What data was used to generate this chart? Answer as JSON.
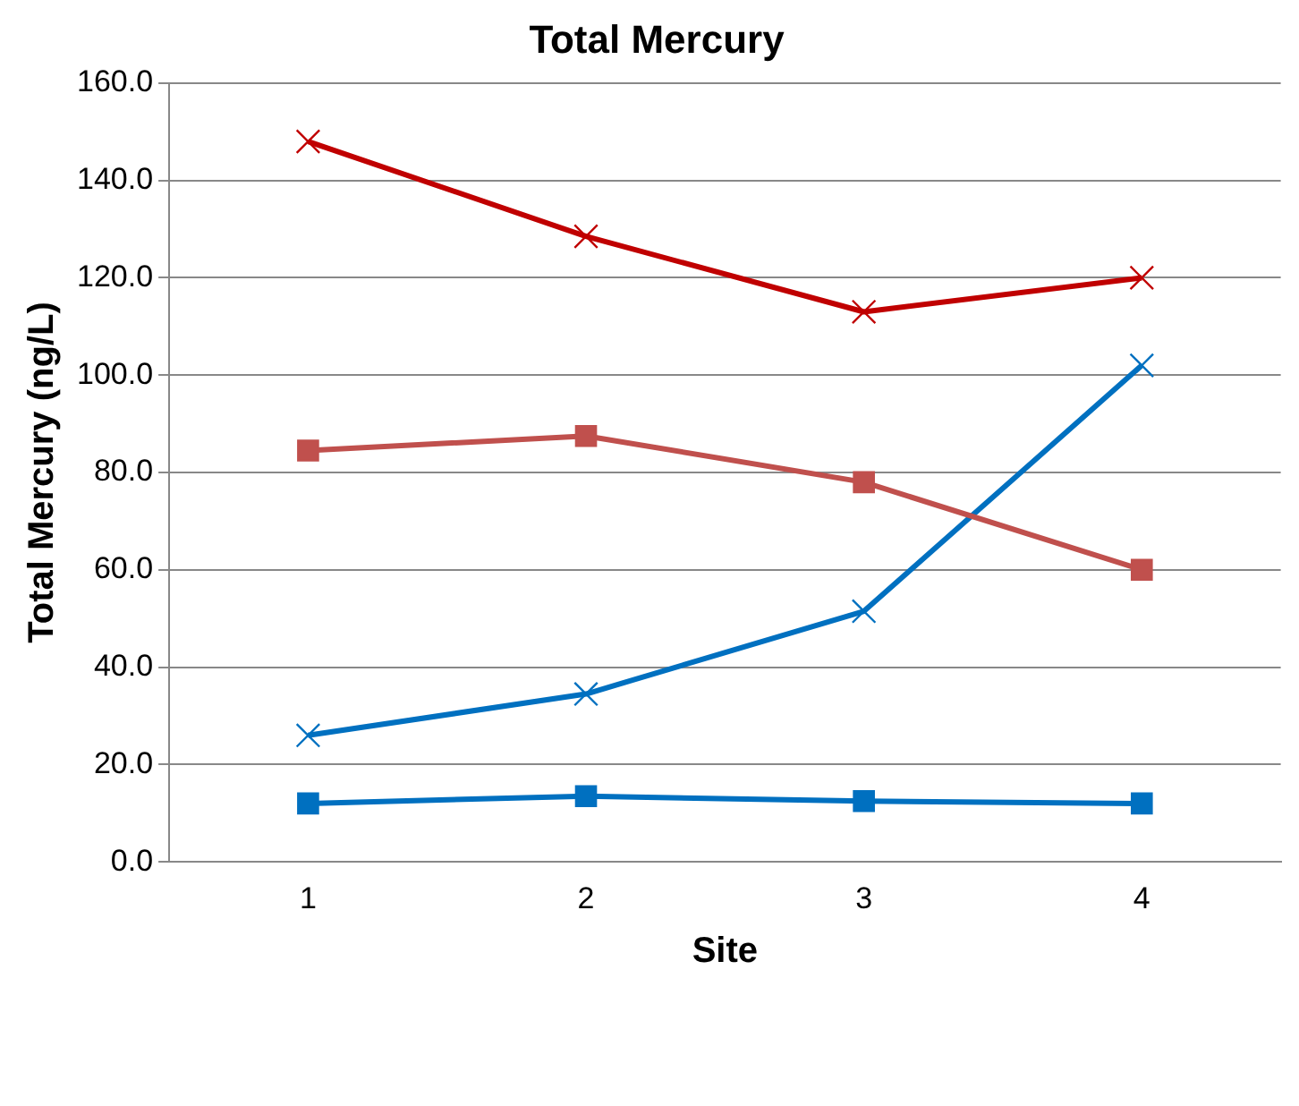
{
  "chart_data": {
    "type": "line",
    "title": "Total Mercury",
    "xlabel": "Site",
    "ylabel": "Total Mercury (ng/L)",
    "categories": [
      "1",
      "2",
      "3",
      "4"
    ],
    "series": [
      {
        "color": "#c00000",
        "marker": "cross",
        "values": [
          148,
          128.5,
          113,
          120
        ]
      },
      {
        "color": "#c0504d",
        "marker": "square",
        "values": [
          84.5,
          87.5,
          78,
          60
        ]
      },
      {
        "color": "#0070c0",
        "marker": "cross",
        "values": [
          26,
          34.5,
          51.5,
          102
        ]
      },
      {
        "color": "#0070c0",
        "marker": "square",
        "values": [
          12,
          13.5,
          12.5,
          12
        ]
      }
    ],
    "ylim": [
      0,
      160
    ],
    "yticks": [
      {
        "value": 0,
        "label": "0.0"
      },
      {
        "value": 20,
        "label": "20.0"
      },
      {
        "value": 40,
        "label": "40.0"
      },
      {
        "value": 60,
        "label": "60.0"
      },
      {
        "value": 80,
        "label": "80.0"
      },
      {
        "value": 100,
        "label": "100.0"
      },
      {
        "value": 120,
        "label": "120.0"
      },
      {
        "value": 140,
        "label": "140.0"
      },
      {
        "value": 160,
        "label": "160.0"
      }
    ],
    "grid": "y",
    "legend": false
  }
}
